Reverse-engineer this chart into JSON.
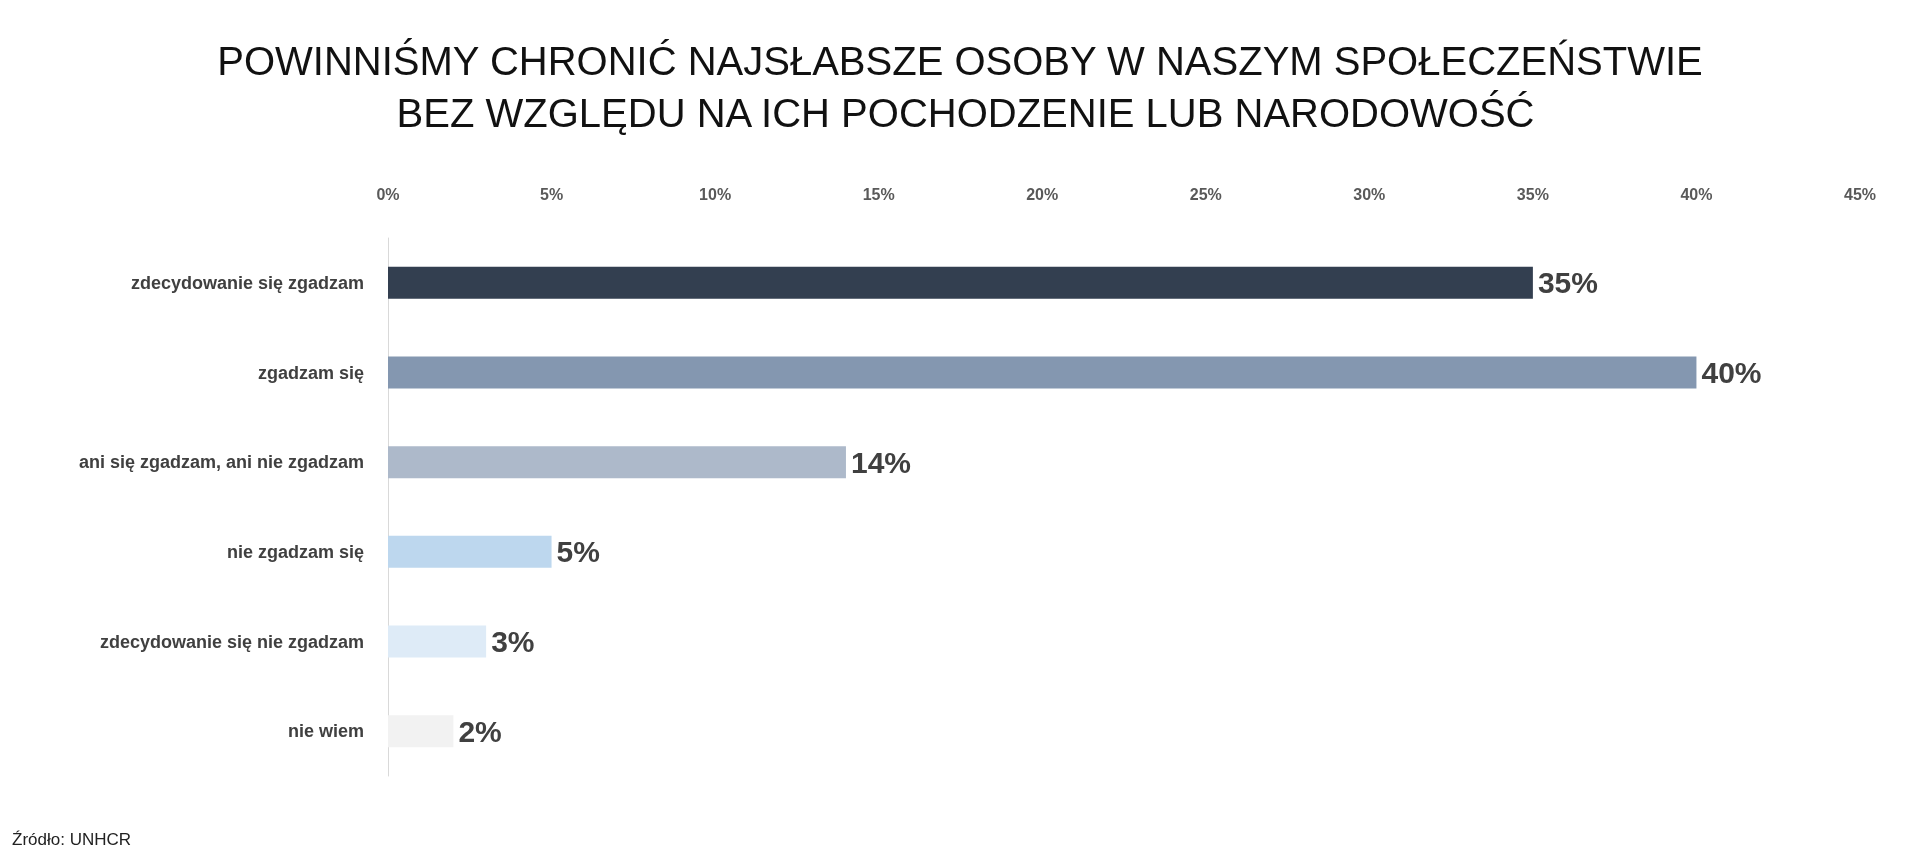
{
  "chart_data": {
    "type": "bar",
    "orientation": "horizontal",
    "title": "POWINNIŚMY CHRONIĆ NAJSŁABSZE OSOBY W NASZYM SPOŁECZEŃSTWIE BEZ WZGLĘDU NA ICH POCHODZENIE LUB NARODOWOŚĆ",
    "categories": [
      "zdecydowanie się zgadzam",
      "zgadzam się",
      "ani się zgadzam, ani nie zgadzam",
      "nie zgadzam się",
      "zdecydowanie się nie zgadzam",
      "nie wiem"
    ],
    "values": [
      35,
      40,
      14,
      5,
      3,
      2
    ],
    "colors": [
      "#333f50",
      "#8497b0",
      "#adb9ca",
      "#bdd7ee",
      "#deebf7",
      "#f2f2f2"
    ],
    "value_labels": [
      "35%",
      "40%",
      "14%",
      "5%",
      "3%",
      "2%"
    ],
    "xlim": [
      0,
      45
    ],
    "xticks": [
      {
        "value": 0,
        "label": "0%"
      },
      {
        "value": 5,
        "label": "5%"
      },
      {
        "value": 10,
        "label": "10%"
      },
      {
        "value": 15,
        "label": "15%"
      },
      {
        "value": 20,
        "label": "20%"
      },
      {
        "value": 25,
        "label": "25%"
      },
      {
        "value": 30,
        "label": "30%"
      },
      {
        "value": 35,
        "label": "35%"
      },
      {
        "value": 40,
        "label": "40%"
      },
      {
        "value": 45,
        "label": "45%"
      }
    ],
    "grid": false,
    "annotations": [
      "Źródło: UNHCR"
    ]
  }
}
